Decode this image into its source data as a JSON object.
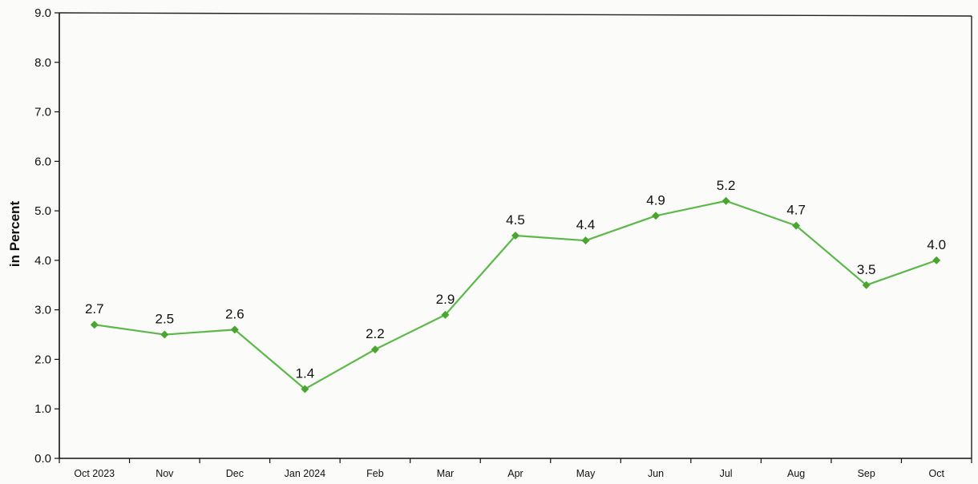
{
  "chart_data": {
    "type": "line",
    "title": "",
    "xlabel": "",
    "ylabel": "in Percent",
    "ylim": [
      0,
      9
    ],
    "yticks": [
      "0.0",
      "1.0",
      "2.0",
      "3.0",
      "4.0",
      "5.0",
      "6.0",
      "7.0",
      "8.0",
      "9.0"
    ],
    "categories": [
      "Oct 2023",
      "Nov",
      "Dec",
      "Jan 2024",
      "Feb",
      "Mar",
      "Apr",
      "May",
      "Jun",
      "Jul",
      "Aug",
      "Sep",
      "Oct"
    ],
    "series": [
      {
        "values": [
          2.7,
          2.5,
          2.6,
          1.4,
          2.2,
          2.9,
          4.5,
          4.4,
          4.9,
          5.2,
          4.7,
          3.5,
          4.0
        ],
        "labels": [
          "2.7",
          "2.5",
          "2.6",
          "1.4",
          "2.2",
          "2.9",
          "4.5",
          "4.4",
          "4.9",
          "5.2",
          "4.7",
          "3.5",
          "4.0"
        ],
        "color": "#5cb84a",
        "marker_color": "#4aa52e",
        "marker": "diamond"
      }
    ],
    "grid": false,
    "legend": "none"
  }
}
